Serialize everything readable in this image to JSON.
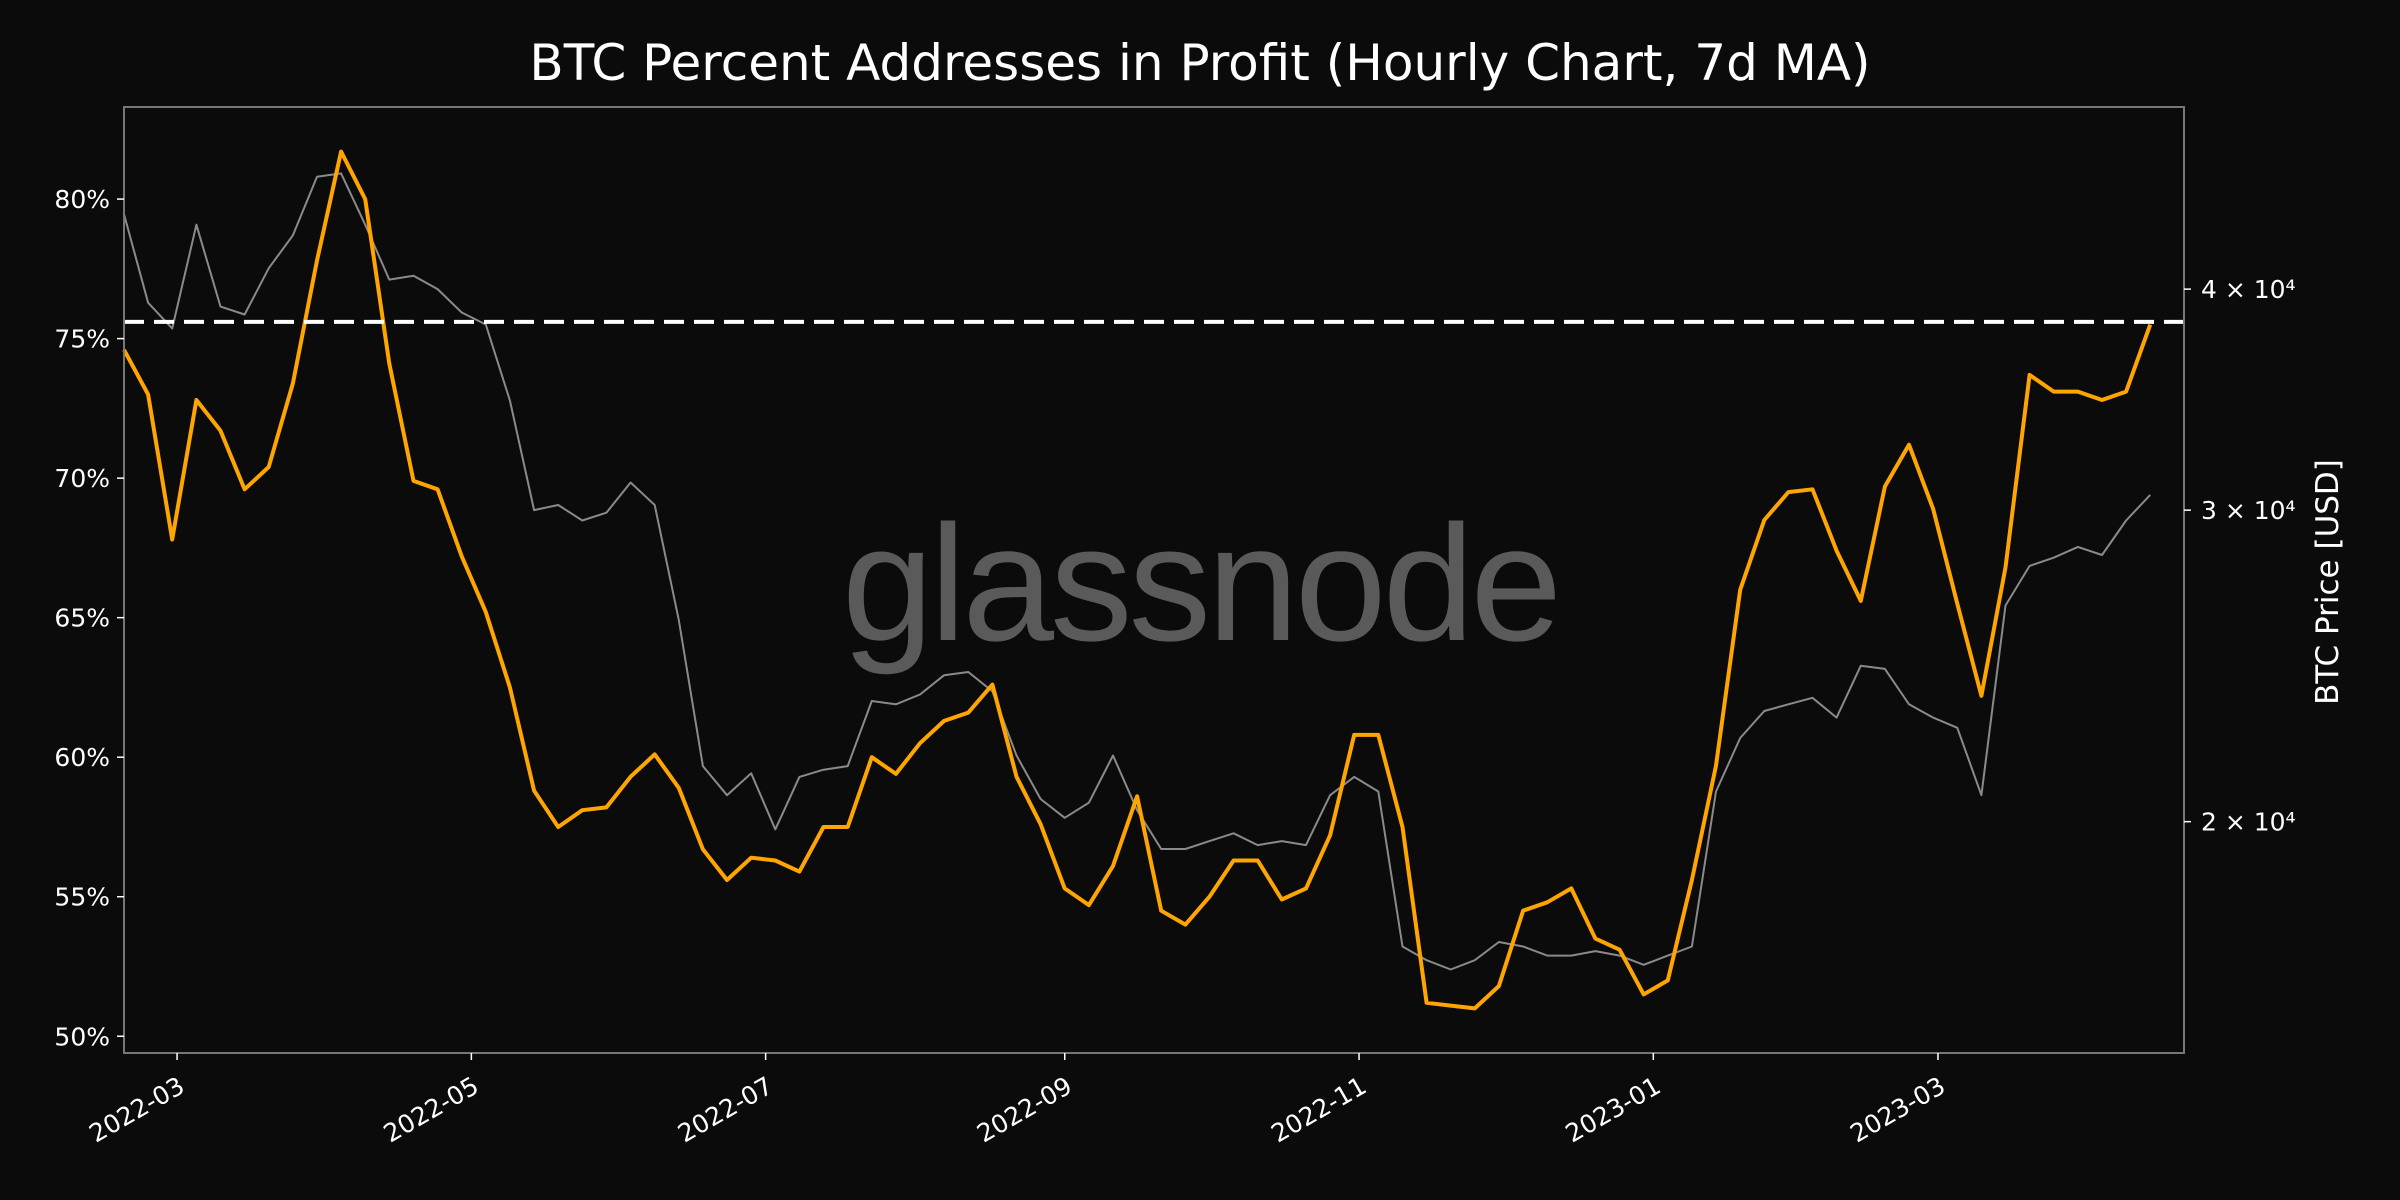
{
  "chart_data": {
    "type": "line",
    "title": "BTC Percent Addresses in Profit (Hourly Chart, 7d MA)",
    "watermark": "glassnode",
    "xlabel": "",
    "ylabel_left": "",
    "ylabel_right": "BTC Price [USD]",
    "xlim": [
      "2022-02-18",
      "2023-04-21"
    ],
    "ylim_left": [
      49.4,
      83.3
    ],
    "ylim_right": [
      14800,
      50700
    ],
    "right_scale": "log",
    "grid": false,
    "x_ticks": [
      {
        "date": "2022-03-01",
        "label": "2022-03"
      },
      {
        "date": "2022-05-01",
        "label": "2022-05"
      },
      {
        "date": "2022-07-01",
        "label": "2022-07"
      },
      {
        "date": "2022-09-01",
        "label": "2022-09"
      },
      {
        "date": "2022-11-01",
        "label": "2022-11"
      },
      {
        "date": "2023-01-01",
        "label": "2023-01"
      },
      {
        "date": "2023-03-01",
        "label": "2023-03"
      }
    ],
    "y_ticks_left": [
      {
        "value": 50,
        "label": "50%"
      },
      {
        "value": 55,
        "label": "55%"
      },
      {
        "value": 60,
        "label": "60%"
      },
      {
        "value": 65,
        "label": "65%"
      },
      {
        "value": 70,
        "label": "70%"
      },
      {
        "value": 75,
        "label": "75%"
      },
      {
        "value": 80,
        "label": "80%"
      }
    ],
    "y_ticks_right": [
      {
        "value": 20000,
        "label": "2 × 10⁴"
      },
      {
        "value": 30000,
        "label": "3 × 10⁴"
      },
      {
        "value": 40000,
        "label": "4 × 10⁴"
      }
    ],
    "reference_line": {
      "value": 75.6,
      "axis": "left",
      "style": "dashed",
      "color": "#ffffff"
    },
    "series_start": "2022-02-18",
    "series_interval_days": 5,
    "series": [
      {
        "axis": "right",
        "color": "#8a8a8a",
        "values": [
          44100,
          39300,
          38000,
          43500,
          39100,
          38700,
          41100,
          42900,
          46300,
          46500,
          43500,
          40500,
          40700,
          40000,
          38800,
          38200,
          34600,
          30000,
          30200,
          29600,
          29900,
          31100,
          30200,
          26000,
          21500,
          20700,
          21300,
          19800,
          21200,
          21400,
          21500,
          23400,
          23300,
          23600,
          24200,
          24300,
          23700,
          21800,
          20600,
          20100,
          20500,
          21800,
          20300,
          19300,
          19300,
          19500,
          19700,
          19400,
          19500,
          19400,
          20700,
          21200,
          20800,
          17000,
          16700,
          16500,
          16700,
          17100,
          17000,
          16800,
          16800,
          16900,
          16800,
          16600,
          16800,
          17000,
          20800,
          22300,
          23100,
          23300,
          23500,
          22900,
          24500,
          24400,
          23300,
          22900,
          22600,
          20700,
          26500,
          27900,
          28200,
          28600,
          28300,
          29600,
          30600
        ]
      },
      {
        "axis": "left",
        "color": "#ffa500",
        "values": [
          74.6,
          73.0,
          67.8,
          72.8,
          71.7,
          69.6,
          70.4,
          73.4,
          77.8,
          81.7,
          80.0,
          74.1,
          69.9,
          69.6,
          67.2,
          65.2,
          62.5,
          58.8,
          57.5,
          58.1,
          58.2,
          59.3,
          60.1,
          58.9,
          56.7,
          55.6,
          56.4,
          56.3,
          55.9,
          57.5,
          57.5,
          60.0,
          59.4,
          60.5,
          61.3,
          61.6,
          62.6,
          59.3,
          57.6,
          55.3,
          54.7,
          56.1,
          58.6,
          54.5,
          54.0,
          55.0,
          56.3,
          56.3,
          54.9,
          55.3,
          57.2,
          60.8,
          60.8,
          57.5,
          51.2,
          51.1,
          51.0,
          51.8,
          54.5,
          54.8,
          55.3,
          53.5,
          53.1,
          51.5,
          52.0,
          55.6,
          59.7,
          66.0,
          68.5,
          69.5,
          69.6,
          67.4,
          65.6,
          69.7,
          71.2,
          68.9,
          65.5,
          62.2,
          66.8,
          73.7,
          73.1,
          73.1,
          72.8,
          73.1,
          75.5
        ]
      }
    ]
  }
}
